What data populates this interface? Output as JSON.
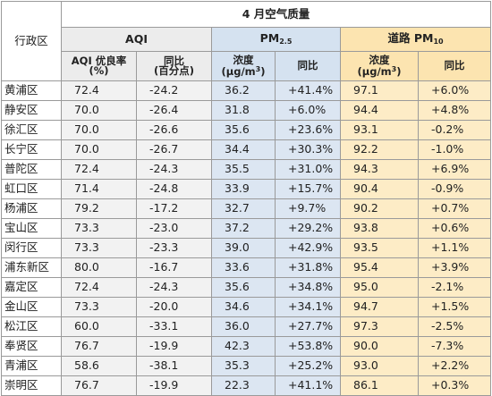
{
  "title": "4 月空气质量",
  "district_header": "行政区",
  "groups": {
    "aqi": "AQI",
    "pm_prefix": "PM",
    "pm_sub": "2.5",
    "road_prefix": "道路 PM",
    "road_sub": "10"
  },
  "subheaders": {
    "aqi_rate_line1": "AQI 优良率",
    "aqi_rate_line2": "(%)",
    "aqi_change_line1": "同比",
    "aqi_change_line2": "(百分点)",
    "pm_conc_line1": "浓度",
    "pm_conc_unit": "(μg/m",
    "pm_conc_sup": "3",
    "pm_conc_close": ")",
    "pm_change": "同比",
    "road_conc_line1": "浓度",
    "road_conc_unit": "(μg/m",
    "road_conc_sup": "3",
    "road_conc_close": ")",
    "road_change": "同比"
  },
  "rows": [
    [
      "黄浦区",
      "72.4",
      "-24.2",
      "36.2",
      "+41.4%",
      "97.1",
      "+6.0%"
    ],
    [
      "静安区",
      "70.0",
      "-26.4",
      "31.8",
      "+6.0%",
      "94.4",
      "+4.8%"
    ],
    [
      "徐汇区",
      "70.0",
      "-26.6",
      "35.6",
      "+23.6%",
      "93.1",
      "-0.2%"
    ],
    [
      "长宁区",
      "70.0",
      "-26.7",
      "34.4",
      "+30.3%",
      "92.2",
      "-1.0%"
    ],
    [
      "普陀区",
      "72.4",
      "-24.3",
      "35.5",
      "+31.0%",
      "94.3",
      "+6.9%"
    ],
    [
      "虹口区",
      "71.4",
      "-24.8",
      "33.9",
      "+15.7%",
      "90.4",
      "-0.9%"
    ],
    [
      "杨浦区",
      "79.2",
      "-17.2",
      "32.7",
      "+9.7%",
      "90.2",
      "+0.7%"
    ],
    [
      "宝山区",
      "73.3",
      "-23.0",
      "37.2",
      "+29.2%",
      "93.8",
      "+0.6%"
    ],
    [
      "闵行区",
      "73.3",
      "-23.3",
      "39.0",
      "+42.9%",
      "93.5",
      "+1.1%"
    ],
    [
      "浦东新区",
      "80.0",
      "-16.7",
      "33.6",
      "+31.8%",
      "95.4",
      "+3.9%"
    ],
    [
      "嘉定区",
      "72.4",
      "-24.3",
      "35.6",
      "+34.8%",
      "95.0",
      "-2.1%"
    ],
    [
      "金山区",
      "73.3",
      "-20.0",
      "34.6",
      "+34.1%",
      "94.7",
      "+1.5%"
    ],
    [
      "松江区",
      "60.0",
      "-33.1",
      "36.0",
      "+27.7%",
      "97.3",
      "-2.5%"
    ],
    [
      "奉贤区",
      "76.7",
      "-19.9",
      "42.3",
      "+53.8%",
      "90.0",
      "-7.3%"
    ],
    [
      "青浦区",
      "58.6",
      "-38.1",
      "35.3",
      "+25.2%",
      "93.0",
      "+2.2%"
    ],
    [
      "崇明区",
      "76.7",
      "-19.9",
      "22.3",
      "+41.1%",
      "86.1",
      "+0.3%"
    ]
  ]
}
